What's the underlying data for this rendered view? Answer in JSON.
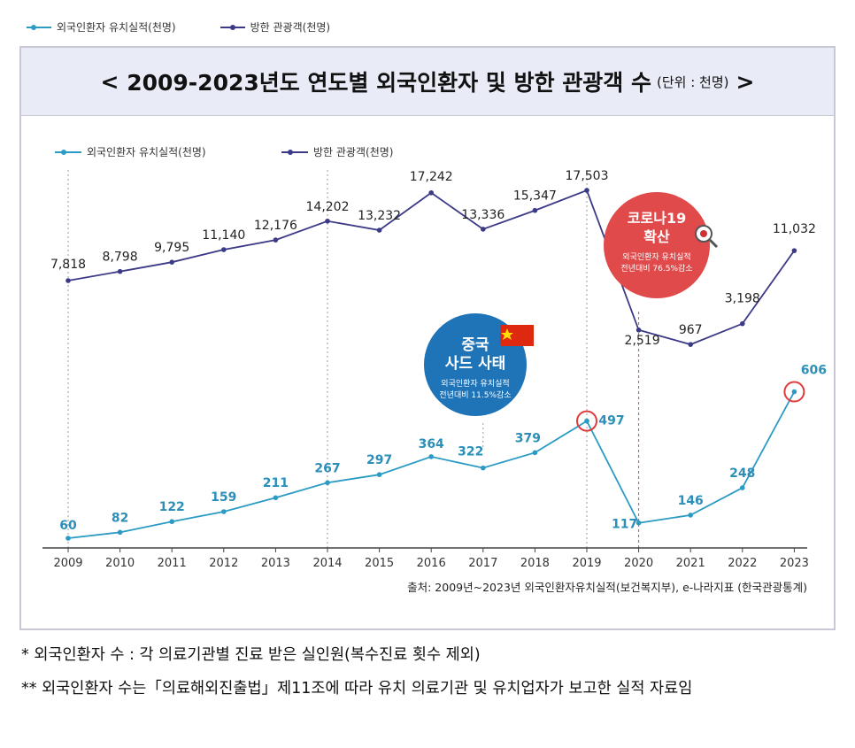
{
  "top_legend": [
    {
      "label": "외국인환자 유치실적(천명)",
      "color": "#2b9bc4"
    },
    {
      "label": "방한 관광객(천명)",
      "color": "#3c3a86"
    }
  ],
  "title": {
    "open": "<",
    "text": "2009-2023년도 연도별 외국인환자 및 방한 관광객 수",
    "unit": "(단위 : 천명)",
    "close": ">"
  },
  "chart_data": {
    "type": "line",
    "categories": [
      "2009",
      "2010",
      "2011",
      "2012",
      "2013",
      "2014",
      "2015",
      "2016",
      "2017",
      "2018",
      "2019",
      "2020",
      "2021",
      "2022",
      "2023"
    ],
    "series": [
      {
        "name": "외국인환자 유치실적(천명)",
        "color": "#2b9bc4",
        "values": [
          60,
          82,
          122,
          159,
          211,
          267,
          297,
          364,
          322,
          379,
          497,
          117,
          146,
          248,
          606
        ],
        "labels": [
          "60",
          "82",
          "122",
          "159",
          "211",
          "267",
          "297",
          "364",
          "322",
          "379",
          "497",
          "117",
          "146",
          "248",
          "606"
        ]
      },
      {
        "name": "방한 관광객(천명)",
        "color": "#3c3a86",
        "values": [
          7818,
          8798,
          9795,
          11140,
          12176,
          14202,
          13232,
          17242,
          13336,
          15347,
          17503,
          2519,
          967,
          3198,
          11032
        ],
        "labels": [
          "7,818",
          "8,798",
          "9,795",
          "11,140",
          "12,176",
          "14,202",
          "13,232",
          "17,242",
          "13,336",
          "15,347",
          "17,503",
          "2,519",
          "967",
          "3,198",
          "11,032"
        ]
      }
    ],
    "legend_position": "top-left",
    "highlighted_points": [
      {
        "series": "외국인환자 유치실적(천명)",
        "category": "2019"
      },
      {
        "series": "외국인환자 유치실적(천명)",
        "category": "2023"
      }
    ],
    "annotations": {
      "china": {
        "title1": "중국",
        "title2": "사드 사태",
        "sub1": "외국인환자 유치실적",
        "sub2": "전년대비 11.5%감소",
        "color": "#1f73b7"
      },
      "covid": {
        "title1": "코로나19",
        "title2": "확산",
        "sub1": "외국인환자 유치실적",
        "sub2": "전년대비 76.5%감소",
        "color": "#e04a4a"
      }
    },
    "source": "출처: 2009년~2023년 외국인환자유치실적(보건복지부), e-나라지표 (한국관광통계)"
  },
  "notes": [
    {
      "mark": "*",
      "text": "외국인환자 수 : 각 의료기관별 진료 받은 실인원(복수진료 횟수 제외)"
    },
    {
      "mark": "**",
      "text": "외국인환자 수는「의료해외진출법」제11조에 따라 유치 의료기관 및 유치업자가 보고한 실적 자료임"
    }
  ]
}
